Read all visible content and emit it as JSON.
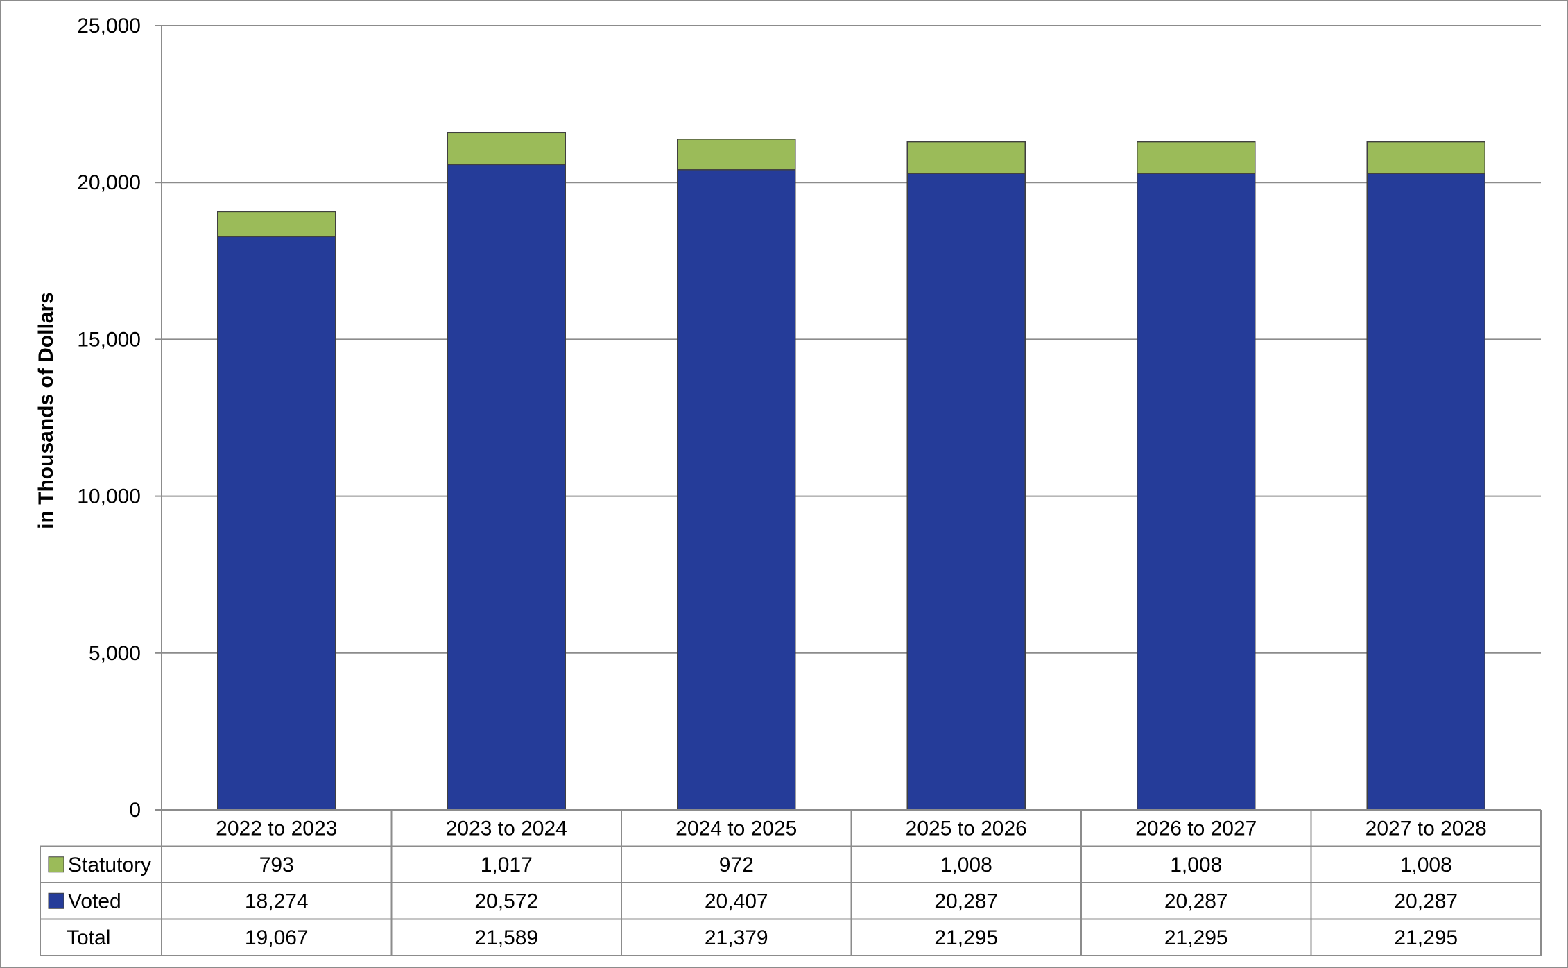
{
  "chart_data": {
    "type": "bar",
    "stacked": true,
    "title": "",
    "xlabel": "",
    "ylabel": "in Thousands of Dollars",
    "ylim": [
      0,
      25000
    ],
    "yticks": [
      0,
      5000,
      10000,
      15000,
      20000,
      25000
    ],
    "ytick_labels": [
      "0",
      "5,000",
      "10,000",
      "15,000",
      "20,000",
      "25,000"
    ],
    "grid": true,
    "legend": "data-table-left",
    "categories": [
      "2022 to 2023",
      "2023 to 2024",
      "2024 to 2025",
      "2025 to 2026",
      "2026 to 2027",
      "2027 to 2028"
    ],
    "series": [
      {
        "name": "Voted",
        "color": "#253C99",
        "values": [
          18274,
          20572,
          20407,
          20287,
          20287,
          20287
        ],
        "labels": [
          "18,274",
          "20,572",
          "20,407",
          "20,287",
          "20,287",
          "20,287"
        ]
      },
      {
        "name": "Statutory",
        "color": "#9BBB59",
        "values": [
          793,
          1017,
          972,
          1008,
          1008,
          1008
        ],
        "labels": [
          "793",
          "1,017",
          "972",
          "1,008",
          "1,008",
          "1,008"
        ]
      }
    ],
    "table_rows": [
      {
        "key": "Statutory",
        "label": "Statutory",
        "color": "#9BBB59",
        "cells": [
          "793",
          "1,017",
          "972",
          "1,008",
          "1,008",
          "1,008"
        ]
      },
      {
        "key": "Voted",
        "label": "Voted",
        "color": "#253C99",
        "cells": [
          "18,274",
          "20,572",
          "20,407",
          "20,287",
          "20,287",
          "20,287"
        ]
      },
      {
        "key": "Total",
        "label": "Total",
        "color": null,
        "cells": [
          "19,067",
          "21,589",
          "21,379",
          "21,295",
          "21,295",
          "21,295"
        ]
      }
    ]
  }
}
